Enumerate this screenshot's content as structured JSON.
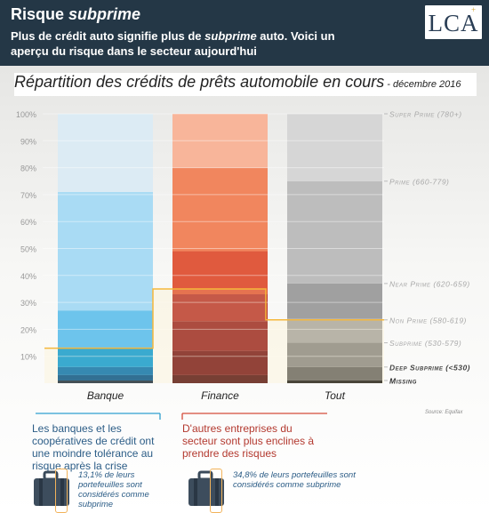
{
  "header": {
    "title_plain": "Risque ",
    "title_italic": "subprime",
    "subtitle_part1": "Plus de crédit auto signifie plus de ",
    "subtitle_italic": "subprime",
    "subtitle_part2": " auto. Voici un aperçu du risque dans le secteur aujourd'hui"
  },
  "logo": {
    "text": "LCA",
    "mark": "+"
  },
  "chart_title": {
    "main": "Répartition des crédits de prêts automobile en cours",
    "dash": " - ",
    "date": "décembre 2016"
  },
  "chart_data": {
    "type": "bar",
    "stacked": true,
    "categories": [
      "Banque",
      "Finance",
      "Tout"
    ],
    "ylim": [
      0,
      100
    ],
    "y_ticks": [
      "10%",
      "20%",
      "30%",
      "40%",
      "50%",
      "60%",
      "70%",
      "80%",
      "90%",
      "100%"
    ],
    "segment_order": [
      "Missing",
      "Deep Subprime (<530)",
      "Subprime (530-579)",
      "Non Prime (580-619)",
      "Near Prime (620-659)",
      "Prime (660-779)",
      "Super Prime (780+)"
    ],
    "stacks": [
      {
        "category": "Banque",
        "boundaries": [
          1,
          3,
          6,
          13,
          27,
          71,
          100
        ],
        "colors": [
          "#1c2f45",
          "#06568f",
          "#0a74b4",
          "#0f9dd8",
          "#6dc4ec",
          "#a9dbf4",
          "#dcebf4"
        ]
      },
      {
        "category": "Finance",
        "boundaries": [
          3,
          12,
          23,
          33,
          49,
          80,
          100
        ],
        "colors": [
          "#5a1a1c",
          "#7a1f22",
          "#9a2a2a",
          "#b93a34",
          "#e05a3e",
          "#f1865e",
          "#f8b59a"
        ]
      },
      {
        "category": "Tout",
        "boundaries": [
          1,
          6,
          15,
          24,
          37,
          75,
          100
        ],
        "colors": [
          "#222222",
          "#6a6a6a",
          "#8c8c8c",
          "#a9a9a9",
          "#a0a0a0",
          "#bdbdbd",
          "#d6d6d6"
        ]
      }
    ],
    "subprime_line": {
      "values": [
        13,
        35,
        23.5
      ],
      "color": "#f5b83c"
    },
    "legend": [
      {
        "label": "Super Prime (780+)",
        "at": 100
      },
      {
        "label": "Prime (660-779)",
        "at": 75
      },
      {
        "label": "Near Prime (620-659)",
        "at": 37
      },
      {
        "label": "Non Prime (580-619)",
        "at": 23.5
      },
      {
        "label": "Subprime (530-579)",
        "at": 15
      },
      {
        "label": "Deep Subprime (<530)",
        "at": 6
      },
      {
        "label": "Missing",
        "at": 1
      }
    ],
    "label_color": "#a9a9a9",
    "highlight_label_color": "#333333"
  },
  "source": "Source: Equifax",
  "notes": {
    "left": "Les banques et les coopératives de crédit ont une moindre tolérance au risque après la crise",
    "right": "D'autres entreprises du secteur sont plus enclines à prendre des risques"
  },
  "cases": {
    "left": "13,1% de leurs portefeuilles sont considérés comme subprime",
    "right": "34,8% de leurs portefeuilles sont considérés comme subprime"
  }
}
